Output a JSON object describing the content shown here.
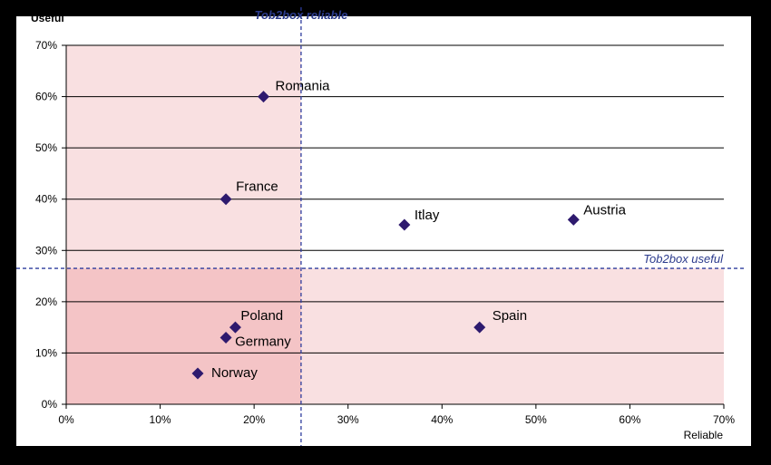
{
  "chart_data": {
    "type": "scatter",
    "title": "",
    "xlabel": "Reliable",
    "ylabel": "Useful",
    "xlim": [
      0,
      70
    ],
    "ylim": [
      0,
      70
    ],
    "x_ticks": [
      "0%",
      "10%",
      "20%",
      "30%",
      "40%",
      "50%",
      "60%",
      "70%"
    ],
    "y_ticks": [
      "0%",
      "10%",
      "20%",
      "30%",
      "40%",
      "50%",
      "60%",
      "70%"
    ],
    "grid": "horizontal",
    "thresholds": {
      "x": {
        "value": 25,
        "label": "Tob2box reliable"
      },
      "y": {
        "value": 26.5,
        "label": "Tob2box useful"
      }
    },
    "points": [
      {
        "label": "Romania",
        "x": 21,
        "y": 60
      },
      {
        "label": "France",
        "x": 17,
        "y": 40
      },
      {
        "label": "Itlay",
        "x": 36,
        "y": 35
      },
      {
        "label": "Austria",
        "x": 54,
        "y": 36
      },
      {
        "label": "Poland",
        "x": 18,
        "y": 15
      },
      {
        "label": "Germany",
        "x": 17,
        "y": 13
      },
      {
        "label": "Spain",
        "x": 44,
        "y": 15
      },
      {
        "label": "Norway",
        "x": 14,
        "y": 6
      }
    ],
    "colors": {
      "marker": "#2e1a6e",
      "quadrant_light": "#f9e0e1",
      "quadrant_dark": "#f4c4c6",
      "threshold_line": "#2e3d9e",
      "threshold_label": "#2a3a8c",
      "grid": "#000000",
      "plot_bg": "#ffffff"
    }
  }
}
